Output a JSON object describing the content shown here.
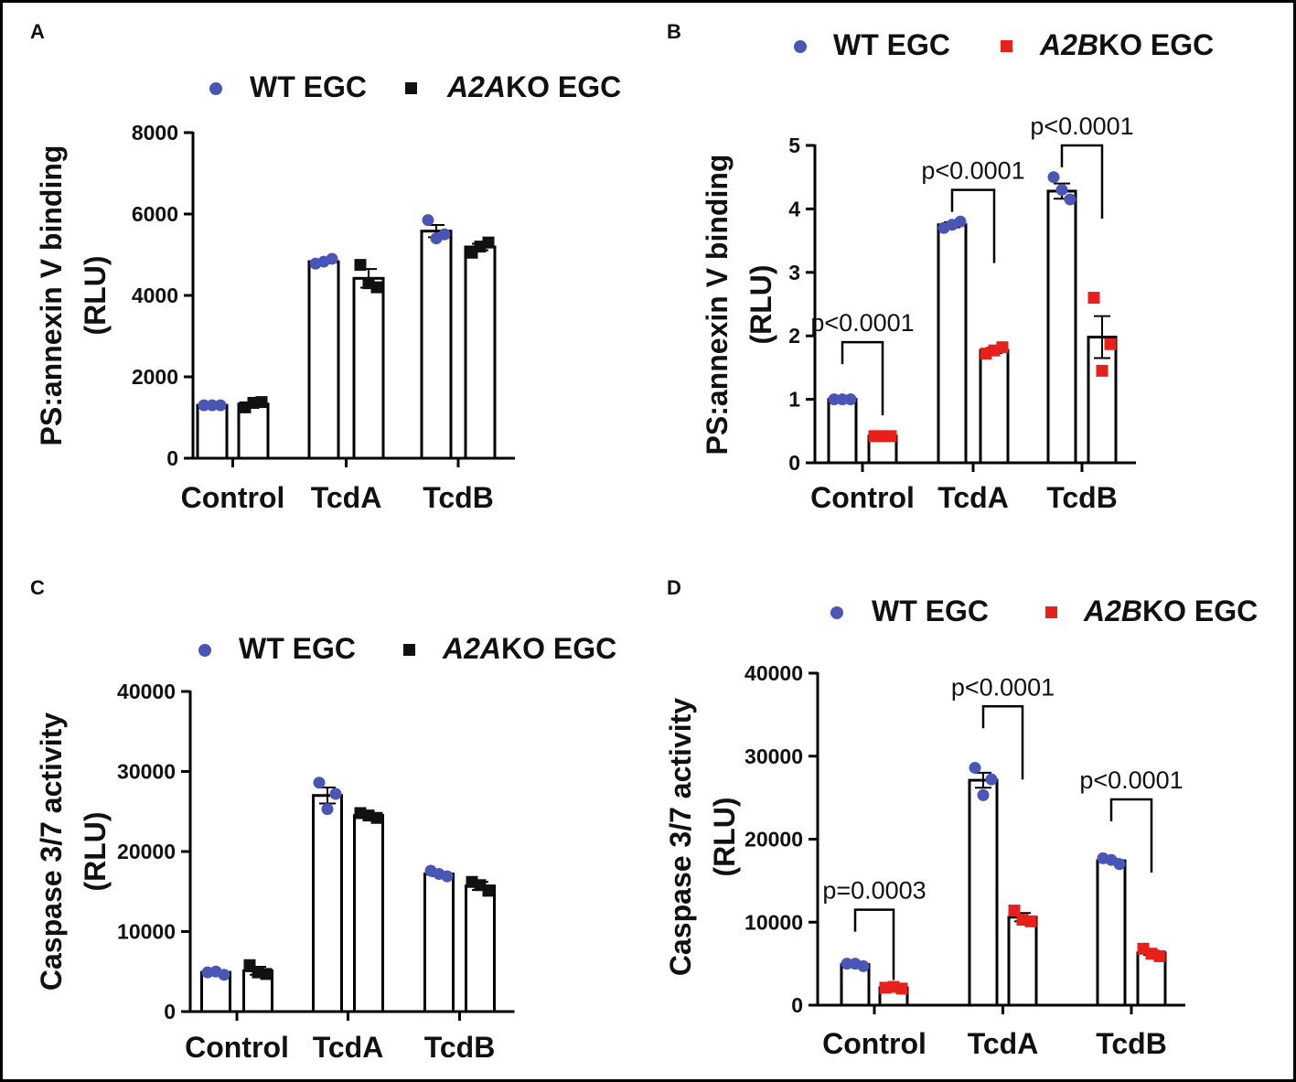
{
  "figure": {
    "frame_color": "#000000"
  },
  "colors": {
    "wt": "#4a56b5",
    "a2a": "#111111",
    "a2b": "#e8201c"
  },
  "chart_data": [
    {
      "panel": "A",
      "type": "bar",
      "ylabel_line1": "PS:annexin V binding",
      "ylabel_line2": "(RLU)",
      "categories": [
        "Control",
        "TcdA",
        "TcdB"
      ],
      "ylim": [
        0,
        8000
      ],
      "yticks": [
        0,
        2000,
        4000,
        6000,
        8000
      ],
      "tick_labels": [
        "0",
        "2000",
        "4000",
        "6000",
        "8000"
      ],
      "legend": [
        {
          "name": "WT EGC",
          "italic_part": "",
          "marker": "circle",
          "color_key": "wt"
        },
        {
          "name": "KO EGC",
          "italic_part": "A2A",
          "marker": "square",
          "color_key": "a2a"
        }
      ],
      "series": [
        {
          "name": "WT EGC",
          "marker": "circle",
          "color_key": "wt",
          "values": [
            1300,
            4830,
            5580
          ],
          "sem": [
            15,
            40,
            150
          ],
          "points": [
            [
              1300,
              1300,
              1300
            ],
            [
              4780,
              4900,
              4830
            ],
            [
              5850,
              5500,
              5400
            ]
          ]
        },
        {
          "name": "A2AKO EGC",
          "marker": "square",
          "color_key": "a2a",
          "values": [
            1330,
            4420,
            5190
          ],
          "sem": [
            40,
            230,
            80
          ],
          "points": [
            [
              1250,
              1380,
              1360
            ],
            [
              4750,
              4200,
              4300
            ],
            [
              5050,
              5300,
              5200
            ]
          ]
        }
      ],
      "pvalues": []
    },
    {
      "panel": "B",
      "type": "bar",
      "ylabel_line1": "PS:annexin V binding",
      "ylabel_line2": "(RLU)",
      "categories": [
        "Control",
        "TcdA",
        "TcdB"
      ],
      "ylim": [
        0,
        5
      ],
      "yticks": [
        0,
        1,
        2,
        3,
        4,
        5
      ],
      "tick_labels": [
        "0",
        "1",
        "2",
        "3",
        "4",
        "5"
      ],
      "legend": [
        {
          "name": "WT EGC",
          "italic_part": "",
          "marker": "circle",
          "color_key": "wt"
        },
        {
          "name": "KO EGC",
          "italic_part": "A2B",
          "marker": "square",
          "color_key": "a2b"
        }
      ],
      "series": [
        {
          "name": "WT EGC",
          "marker": "circle",
          "color_key": "wt",
          "values": [
            1.0,
            3.75,
            4.28
          ],
          "sem": [
            0.01,
            0.04,
            0.12
          ],
          "points": [
            [
              1.0,
              1.0,
              1.0
            ],
            [
              3.7,
              3.8,
              3.75
            ],
            [
              4.5,
              4.15,
              4.3
            ]
          ]
        },
        {
          "name": "A2BKO EGC",
          "marker": "square",
          "color_key": "a2b",
          "values": [
            0.42,
            1.77,
            1.98
          ],
          "sem": [
            0.01,
            0.04,
            0.33
          ],
          "points": [
            [
              0.42,
              0.42,
              0.42
            ],
            [
              1.72,
              1.82,
              1.77
            ],
            [
              2.6,
              1.87,
              1.45
            ]
          ]
        }
      ],
      "pvalues": [
        {
          "category": 0,
          "label": "p<0.0001",
          "level": 1.9
        },
        {
          "category": 1,
          "label": "p<0.0001",
          "level": 4.3
        },
        {
          "category": 2,
          "label": "p<0.0001",
          "level": 5.0
        }
      ]
    },
    {
      "panel": "C",
      "type": "bar",
      "ylabel_line1": "Caspase 3/7 activity",
      "ylabel_line2": "(RLU)",
      "categories": [
        "Control",
        "TcdA",
        "TcdB"
      ],
      "ylim": [
        0,
        40000
      ],
      "yticks": [
        0,
        10000,
        20000,
        30000,
        40000
      ],
      "tick_labels": [
        "0",
        "10000",
        "20000",
        "30000",
        "40000"
      ],
      "legend": [
        {
          "name": "WT EGC",
          "italic_part": "",
          "marker": "circle",
          "color_key": "wt"
        },
        {
          "name": "KO EGC",
          "italic_part": "A2A",
          "marker": "square",
          "color_key": "a2a"
        }
      ],
      "series": [
        {
          "name": "WT EGC",
          "marker": "circle",
          "color_key": "wt",
          "values": [
            4900,
            27000,
            17200
          ],
          "sem": [
            150,
            1000,
            250
          ],
          "points": [
            [
              4900,
              4600,
              5000
            ],
            [
              28600,
              27200,
              25300
            ],
            [
              17600,
              16900,
              17200
            ]
          ]
        },
        {
          "name": "A2AKO EGC",
          "marker": "square",
          "color_key": "a2a",
          "values": [
            5100,
            24500,
            15700
          ],
          "sem": [
            500,
            300,
            500
          ],
          "points": [
            [
              5800,
              4700,
              4900
            ],
            [
              24800,
              24200,
              24500
            ],
            [
              16200,
              15100,
              15800
            ]
          ]
        }
      ],
      "pvalues": []
    },
    {
      "panel": "D",
      "type": "bar",
      "ylabel_line1": "Caspase 3/7 activity",
      "ylabel_line2": "(RLU)",
      "categories": [
        "Control",
        "TcdA",
        "TcdB"
      ],
      "ylim": [
        0,
        40000
      ],
      "yticks": [
        0,
        10000,
        20000,
        30000,
        40000
      ],
      "tick_labels": [
        "0",
        "10000",
        "20000",
        "30000",
        "40000"
      ],
      "legend": [
        {
          "name": "WT EGC",
          "italic_part": "",
          "marker": "circle",
          "color_key": "wt"
        },
        {
          "name": "KO EGC",
          "italic_part": "A2B",
          "marker": "square",
          "color_key": "a2b"
        }
      ],
      "series": [
        {
          "name": "WT EGC",
          "marker": "circle",
          "color_key": "wt",
          "values": [
            4900,
            27100,
            17400
          ],
          "sem": [
            100,
            900,
            200
          ],
          "points": [
            [
              5000,
              4700,
              5000
            ],
            [
              28600,
              27200,
              25300
            ],
            [
              17700,
              17000,
              17500
            ]
          ]
        },
        {
          "name": "A2BKO EGC",
          "marker": "square",
          "color_key": "a2b",
          "values": [
            2100,
            10600,
            6300
          ],
          "sem": [
            50,
            500,
            250
          ],
          "points": [
            [
              2100,
              2000,
              2200
            ],
            [
              11400,
              10100,
              10300
            ],
            [
              6800,
              5900,
              6200
            ]
          ]
        }
      ],
      "pvalues": [
        {
          "category": 0,
          "label": "p=0.0003",
          "level": 11500
        },
        {
          "category": 1,
          "label": "p<0.0001",
          "level": 36000
        },
        {
          "category": 2,
          "label": "p<0.0001",
          "level": 24800
        }
      ]
    }
  ]
}
